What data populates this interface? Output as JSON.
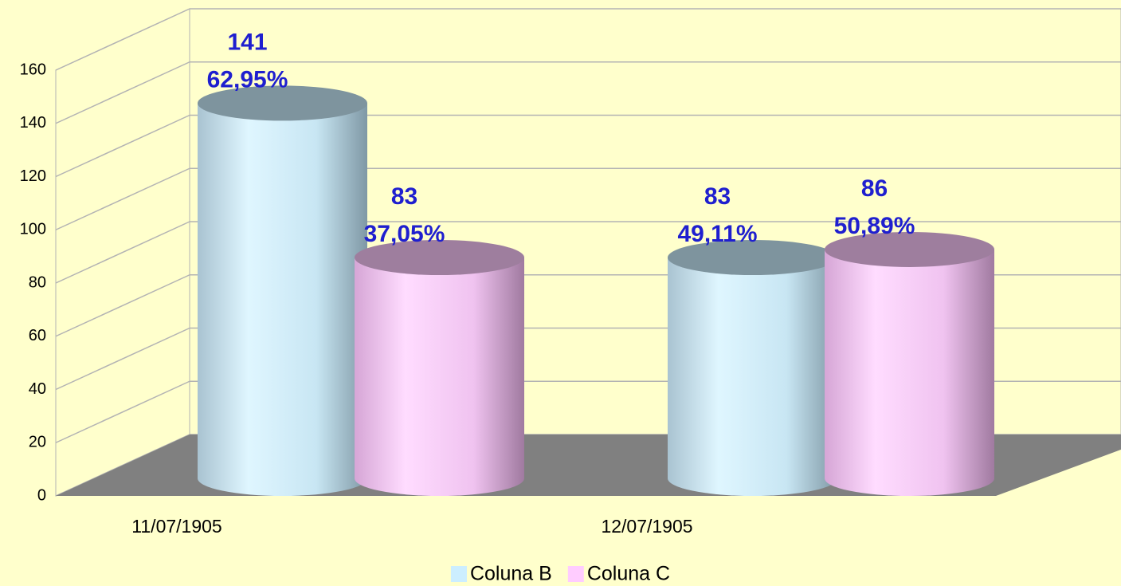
{
  "chart_data": {
    "type": "cylinder_bar",
    "categories": [
      "11/07/1905",
      "12/07/1905"
    ],
    "series": [
      {
        "name": "Coluna B",
        "color": "#cceeff",
        "values": [
          141,
          83
        ],
        "percent_labels": [
          "62,95%",
          "49,11%"
        ]
      },
      {
        "name": "Coluna C",
        "color": "#ffccff",
        "values": [
          83,
          86
        ],
        "percent_labels": [
          "37,05%",
          "50,89%"
        ]
      }
    ],
    "ylim": [
      0,
      160
    ],
    "yticks": [
      0,
      20,
      40,
      60,
      80,
      100,
      120,
      140,
      160
    ],
    "grid": true,
    "legend": "bottom"
  }
}
